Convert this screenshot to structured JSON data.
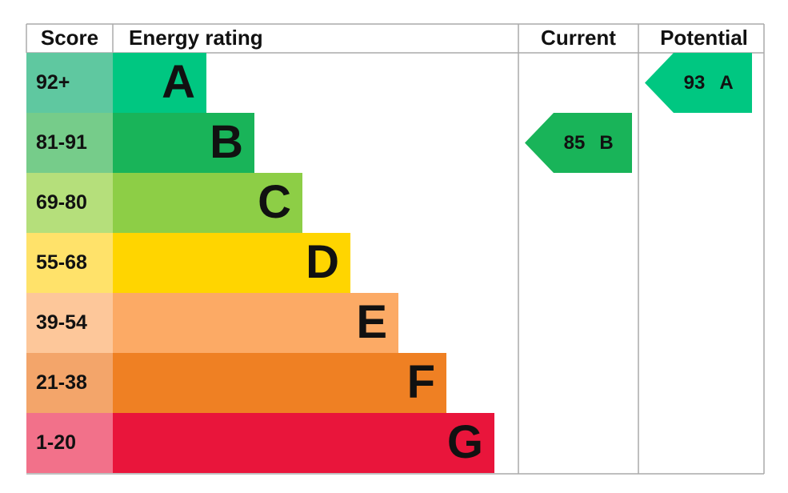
{
  "headers": [
    "Score",
    "Energy rating",
    "Current",
    "Potential"
  ],
  "bands": [
    {
      "score": "92+",
      "letter": "A",
      "color": "#00c781",
      "score_color": "#5fc8a0"
    },
    {
      "score": "81-91",
      "letter": "B",
      "color": "#19b459",
      "score_color": "#76cc8a"
    },
    {
      "score": "69-80",
      "letter": "C",
      "color": "#8dce46",
      "score_color": "#b5df7b"
    },
    {
      "score": "55-68",
      "letter": "D",
      "color": "#ffd500",
      "score_color": "#ffe26a"
    },
    {
      "score": "39-54",
      "letter": "E",
      "color": "#fcaa65",
      "score_color": "#fdc79a"
    },
    {
      "score": "21-38",
      "letter": "F",
      "color": "#ef8023",
      "score_color": "#f3a56a"
    },
    {
      "score": "1-20",
      "letter": "G",
      "color": "#e9153b",
      "score_color": "#f2718a"
    }
  ],
  "current": {
    "value": 85,
    "letter": "B"
  },
  "potential": {
    "value": 93,
    "letter": "A"
  }
}
